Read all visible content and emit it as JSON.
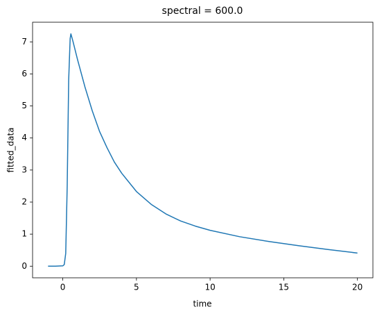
{
  "chart_data": {
    "type": "line",
    "title": "spectral = 600.0",
    "x_label": "time",
    "y_label": "fitted_data",
    "x": [
      -1,
      -0.5,
      0,
      0.1,
      0.2,
      0.3,
      0.4,
      0.5,
      0.55,
      0.7,
      1,
      1.5,
      2,
      2.5,
      3,
      3.5,
      4,
      5,
      6,
      7,
      8,
      9,
      10,
      12,
      14,
      16,
      18,
      20
    ],
    "series": [
      {
        "name": "fitted_data",
        "color": "#1f77b4",
        "values": [
          0,
          0,
          0.01,
          0.05,
          0.4,
          2.5,
          5.8,
          7.1,
          7.25,
          7.0,
          6.45,
          5.6,
          4.85,
          4.2,
          3.7,
          3.25,
          2.9,
          2.33,
          1.93,
          1.63,
          1.41,
          1.25,
          1.12,
          0.92,
          0.77,
          0.64,
          0.52,
          0.41
        ]
      }
    ],
    "xlim": [
      -2.05,
      21.05
    ],
    "ylim": [
      -0.3625,
      7.6125
    ],
    "xticks": [
      0,
      5,
      10,
      15,
      20
    ],
    "yticks": [
      0,
      1,
      2,
      3,
      4,
      5,
      6,
      7
    ]
  }
}
